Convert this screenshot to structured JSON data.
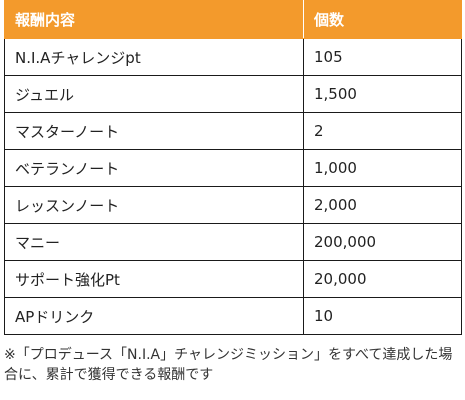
{
  "table": {
    "headers": [
      "報酬内容",
      "個数"
    ],
    "rows": [
      {
        "item": "N.I.Aチャレンジpt",
        "count": "105"
      },
      {
        "item": "ジュエル",
        "count": "1,500"
      },
      {
        "item": "マスターノート",
        "count": "2"
      },
      {
        "item": "ベテランノート",
        "count": "1,000"
      },
      {
        "item": "レッスンノート",
        "count": "2,000"
      },
      {
        "item": "マニー",
        "count": "200,000"
      },
      {
        "item": "サポート強化Pt",
        "count": "20,000"
      },
      {
        "item": "APドリンク",
        "count": "10"
      }
    ]
  },
  "note": "※「プロデュース「N.I.A」チャレンジミッション」をすべて達成した場合に、累計で獲得できる報酬です",
  "colors": {
    "header_bg": "#f39a2c",
    "header_text": "#ffffff",
    "border": "#1a1a1a"
  }
}
